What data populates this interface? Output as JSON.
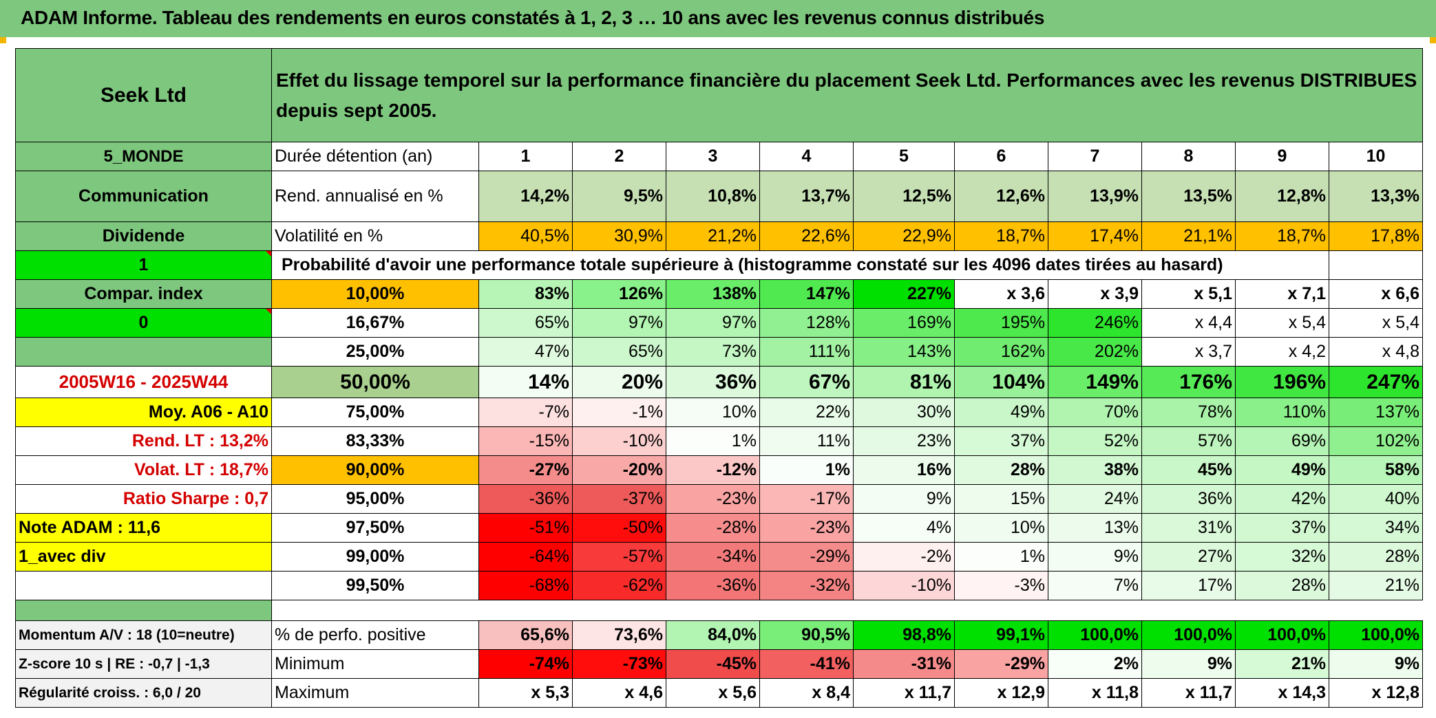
{
  "title": "ADAM Informe. Tableau des rendements en euros constatés à 1, 2, 3 … 10 ans avec les revenus connus distribués",
  "left_panel": {
    "fund_name": "Seek Ltd",
    "region": "5_MONDE",
    "sector": "Communication",
    "dividend_label": "Dividende",
    "flag_1": "1",
    "compar_index": "Compar. index",
    "flag_0": "0",
    "period": "2005W16 - 2025W44",
    "moy_label": "Moy. A06 - A10",
    "rend_lt": "Rend. LT :    13,2%",
    "volat_lt": "Volat. LT :    18,7%",
    "sharpe": "Ratio Sharpe :    0,7",
    "note_adam": "Note ADAM : 11,6",
    "avec_div": "1_avec div",
    "momentum": "Momentum A/V : 18 (10=neutre)",
    "zscore": "Z-score 10 s | RE : -0,7 | -1,3",
    "regularite": "Régularité croiss. : 6,0 / 20"
  },
  "header_text": "Effet du lissage temporel sur la performance financière du placement Seek Ltd. Performances avec les revenus DISTRIBUES depuis sept 2005.",
  "durations": {
    "label": "Durée détention (an)",
    "values": [
      "1",
      "2",
      "3",
      "4",
      "5",
      "6",
      "7",
      "8",
      "9",
      "10"
    ]
  },
  "rend_row": {
    "label": "Rend. annualisé en %",
    "values": [
      "14,2%",
      "9,5%",
      "10,8%",
      "13,7%",
      "12,5%",
      "12,6%",
      "13,9%",
      "13,5%",
      "12,8%",
      "13,3%"
    ]
  },
  "vol_row": {
    "label": "Volatilité en %",
    "values": [
      "40,5%",
      "30,9%",
      "21,2%",
      "22,6%",
      "22,9%",
      "18,7%",
      "17,4%",
      "21,1%",
      "18,7%",
      "17,8%"
    ]
  },
  "prob_title": "Probabilité d'avoir une performance totale supérieure à (histogramme constaté sur les 4096 dates tirées au hasard)",
  "percentile_rows": [
    {
      "label": "10,00%",
      "values": [
        "83%",
        "126%",
        "138%",
        "147%",
        "227%",
        "x 3,6",
        "x 3,9",
        "x 5,1",
        "x 7,1",
        "x 6,6"
      ]
    },
    {
      "label": "16,67%",
      "values": [
        "65%",
        "97%",
        "97%",
        "128%",
        "169%",
        "195%",
        "246%",
        "x 4,4",
        "x 5,4",
        "x 5,4"
      ]
    },
    {
      "label": "25,00%",
      "values": [
        "47%",
        "65%",
        "73%",
        "111%",
        "143%",
        "162%",
        "202%",
        "x 3,7",
        "x 4,2",
        "x 4,8"
      ]
    },
    {
      "label": "50,00%",
      "values": [
        "14%",
        "20%",
        "36%",
        "67%",
        "81%",
        "104%",
        "149%",
        "176%",
        "196%",
        "247%"
      ]
    },
    {
      "label": "75,00%",
      "values": [
        "-7%",
        "-1%",
        "10%",
        "22%",
        "30%",
        "49%",
        "70%",
        "78%",
        "110%",
        "137%"
      ]
    },
    {
      "label": "83,33%",
      "values": [
        "-15%",
        "-10%",
        "1%",
        "11%",
        "23%",
        "37%",
        "52%",
        "57%",
        "69%",
        "102%"
      ]
    },
    {
      "label": "90,00%",
      "values": [
        "-27%",
        "-20%",
        "-12%",
        "1%",
        "16%",
        "28%",
        "38%",
        "45%",
        "49%",
        "58%"
      ]
    },
    {
      "label": "95,00%",
      "values": [
        "-36%",
        "-37%",
        "-23%",
        "-17%",
        "9%",
        "15%",
        "24%",
        "36%",
        "42%",
        "40%"
      ]
    },
    {
      "label": "97,50%",
      "values": [
        "-51%",
        "-50%",
        "-28%",
        "-23%",
        "4%",
        "10%",
        "13%",
        "31%",
        "37%",
        "34%"
      ]
    },
    {
      "label": "99,00%",
      "values": [
        "-64%",
        "-57%",
        "-34%",
        "-29%",
        "-2%",
        "1%",
        "9%",
        "27%",
        "32%",
        "28%"
      ]
    },
    {
      "label": "99,50%",
      "values": [
        "-68%",
        "-62%",
        "-36%",
        "-32%",
        "-10%",
        "-3%",
        "7%",
        "17%",
        "28%",
        "21%"
      ]
    }
  ],
  "bottom_rows": [
    {
      "label": "% de perfo. positive",
      "values": [
        "65,6%",
        "73,6%",
        "84,0%",
        "90,5%",
        "98,8%",
        "99,1%",
        "100,0%",
        "100,0%",
        "100,0%",
        "100,0%"
      ]
    },
    {
      "label": "Minimum",
      "values": [
        "-74%",
        "-73%",
        "-45%",
        "-41%",
        "-31%",
        "-29%",
        "2%",
        "9%",
        "21%",
        "9%"
      ]
    },
    {
      "label": "Maximum",
      "values": [
        "x 5,3",
        "x 4,6",
        "x 5,6",
        "x 8,4",
        "x 11,7",
        "x 12,9",
        "x 11,8",
        "x 11,7",
        "x 14,3",
        "x 12,8"
      ]
    }
  ],
  "colors": {
    "header_green": "#7ec77e",
    "rend_green": "#c6e0b4",
    "vol_orange": "#ffc000",
    "flag_green": "#00e000",
    "yellow": "#ffff00",
    "label_red": "#d40000"
  },
  "cell_colors": {
    "percentile": [
      [
        "#b6f5b6",
        "#8af28a",
        "#6aee6a",
        "#50ea50",
        "#00e000",
        "#ffffff",
        "#ffffff",
        "#ffffff",
        "#ffffff",
        "#ffffff"
      ],
      [
        "#cdf8cd",
        "#b3f5b3",
        "#b3f5b3",
        "#91f091",
        "#6aee6a",
        "#4de94d",
        "#2ee52e",
        "#ffffff",
        "#ffffff",
        "#ffffff"
      ],
      [
        "#e0fae0",
        "#cdf8cd",
        "#c4f7c4",
        "#a3f2a3",
        "#86ef86",
        "#70ed70",
        "#48e848",
        "#ffffff",
        "#ffffff",
        "#ffffff"
      ],
      [
        "#f3fdf3",
        "#edfbed",
        "#dcf9dc",
        "#bff6bf",
        "#b0f4b0",
        "#98f198",
        "#6aee6a",
        "#56ea56",
        "#41e741",
        "#2ee52e"
      ],
      [
        "#fde0e0",
        "#fff0f0",
        "#f6fdf6",
        "#e8fae8",
        "#dff9df",
        "#c9f7c9",
        "#b0f4b0",
        "#a8f3a8",
        "#8af08a",
        "#78ee78"
      ],
      [
        "#fbb6b6",
        "#fdd0d0",
        "#fcfefc",
        "#f1fcf1",
        "#e5fae5",
        "#d6f9d6",
        "#c4f7c4",
        "#bef5be",
        "#b4f4b4",
        "#90f090"
      ],
      [
        "#f48c8c",
        "#f9a8a8",
        "#fcc7c7",
        "#fafefa",
        "#edfbed",
        "#e0fae0",
        "#d2f8d2",
        "#c9f7c9",
        "#c4f7c4",
        "#b8f5b8"
      ],
      [
        "#ee5a5a",
        "#ee5a5a",
        "#f9a3a3",
        "#fbb6b6",
        "#f3fdf3",
        "#eefcee",
        "#e2fae2",
        "#d4f8d4",
        "#ccf7cc",
        "#cff8cf"
      ],
      [
        "#ff0000",
        "#ff0d0d",
        "#f68c8c",
        "#f9a3a3",
        "#f7fdf7",
        "#f1fcf1",
        "#edfbed",
        "#d9f9d9",
        "#d1f8d1",
        "#d5f8d5"
      ],
      [
        "#ff0000",
        "#f93a3a",
        "#f37a7a",
        "#f58c8c",
        "#fff0f0",
        "#fbfefb",
        "#f3fdf3",
        "#dcf9dc",
        "#d6f9d6",
        "#dcf9dc"
      ],
      [
        "#ff0000",
        "#f82a2a",
        "#f37575",
        "#f48484",
        "#fdd7d7",
        "#fff3f3",
        "#f6fdf6",
        "#e8fae8",
        "#dcf9dc",
        "#e5fae5"
      ]
    ],
    "bottom": [
      [
        "#f9c0c0",
        "#fde5e5",
        "#b2f4b2",
        "#79ee79",
        "#00e000",
        "#00e000",
        "#00e000",
        "#00e000",
        "#00e000",
        "#00e000"
      ],
      [
        "#ff0000",
        "#ff0d0d",
        "#f14c4c",
        "#f36060",
        "#f58a8a",
        "#f9a3a3",
        "#f8fef8",
        "#eefcee",
        "#d6f9d6",
        "#eefcee"
      ],
      [
        "#ffffff",
        "#ffffff",
        "#ffffff",
        "#ffffff",
        "#ffffff",
        "#ffffff",
        "#ffffff",
        "#ffffff",
        "#ffffff",
        "#ffffff"
      ]
    ]
  }
}
